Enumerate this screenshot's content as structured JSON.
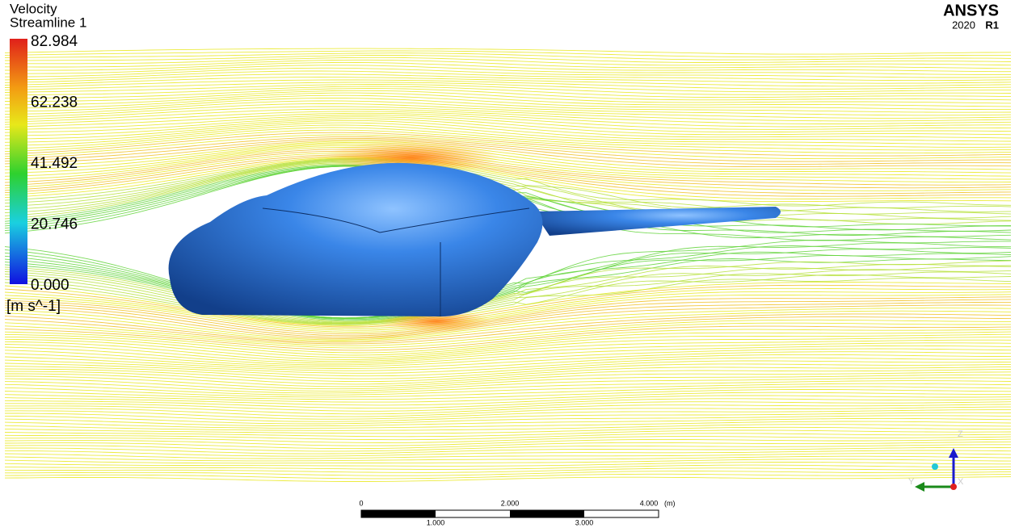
{
  "legend": {
    "title": "Velocity",
    "subtitle": "Streamline 1",
    "ticks": [
      "82.984",
      "62.238",
      "41.492",
      "20.746",
      "0.000"
    ],
    "unit": "[m s^-1]"
  },
  "brand": {
    "name": "ANSYS",
    "version": "2020",
    "release": "R1"
  },
  "scale_bar": {
    "top_labels": [
      "0",
      "2.000",
      "4.000"
    ],
    "unit": "(m)",
    "bottom_labels": [
      "1.000",
      "3.000"
    ]
  },
  "triad": {
    "z": "Z",
    "y": "Y",
    "x": "X"
  }
}
